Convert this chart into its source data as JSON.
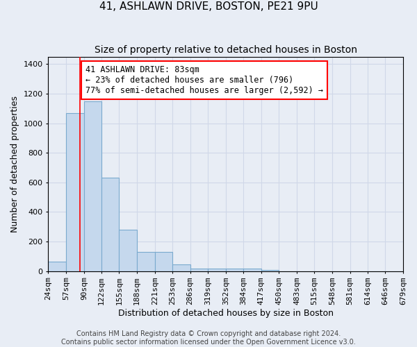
{
  "title": "41, ASHLAWN DRIVE, BOSTON, PE21 9PU",
  "subtitle": "Size of property relative to detached houses in Boston",
  "xlabel": "Distribution of detached houses by size in Boston",
  "ylabel": "Number of detached properties",
  "bin_edges": [
    24,
    57,
    90,
    122,
    155,
    188,
    221,
    253,
    286,
    319,
    352,
    384,
    417,
    450,
    483,
    515,
    548,
    581,
    614,
    646,
    679
  ],
  "bar_heights": [
    65,
    1070,
    1150,
    630,
    280,
    130,
    130,
    45,
    20,
    20,
    20,
    20,
    10,
    0,
    0,
    0,
    0,
    0,
    0,
    0
  ],
  "bar_color": "#c5d8ed",
  "bar_edge_color": "#7aaace",
  "grid_color": "#d0d8e8",
  "background_color": "#e8edf5",
  "red_line_x": 83,
  "annotation_text": "41 ASHLAWN DRIVE: 83sqm\n← 23% of detached houses are smaller (796)\n77% of semi-detached houses are larger (2,592) →",
  "annotation_box_color": "white",
  "annotation_box_edge_color": "red",
  "ylim": [
    0,
    1450
  ],
  "yticks": [
    0,
    200,
    400,
    600,
    800,
    1000,
    1200,
    1400
  ],
  "footer_line1": "Contains HM Land Registry data © Crown copyright and database right 2024.",
  "footer_line2": "Contains public sector information licensed under the Open Government Licence v3.0.",
  "title_fontsize": 11,
  "subtitle_fontsize": 10,
  "xlabel_fontsize": 9,
  "ylabel_fontsize": 9,
  "tick_fontsize": 8,
  "annotation_fontsize": 8.5,
  "footer_fontsize": 7
}
